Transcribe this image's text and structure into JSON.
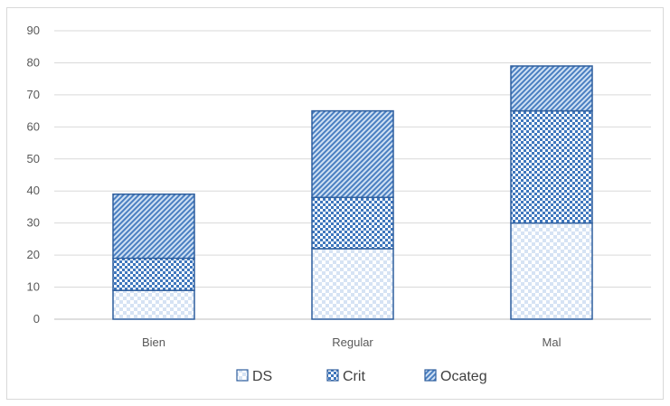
{
  "chart_data": {
    "type": "bar",
    "stacked": true,
    "categories": [
      "Bien",
      "Regular",
      "Mal"
    ],
    "series": [
      {
        "name": "DS",
        "values": [
          9,
          22,
          30
        ],
        "pattern": "light-checker",
        "color": "#4a7fc1"
      },
      {
        "name": "Crit",
        "values": [
          10,
          16,
          35
        ],
        "pattern": "dense-checker",
        "color": "#4a7fc1"
      },
      {
        "name": "Ocateg",
        "values": [
          20,
          27,
          14
        ],
        "pattern": "diagonal-hatch",
        "color": "#4a7fc1"
      }
    ],
    "yticks": [
      0,
      10,
      20,
      30,
      40,
      50,
      60,
      70,
      80,
      90
    ],
    "ylim": [
      0,
      90
    ],
    "grid": true,
    "legend_position": "bottom",
    "title": "",
    "xlabel": "",
    "ylabel": ""
  }
}
